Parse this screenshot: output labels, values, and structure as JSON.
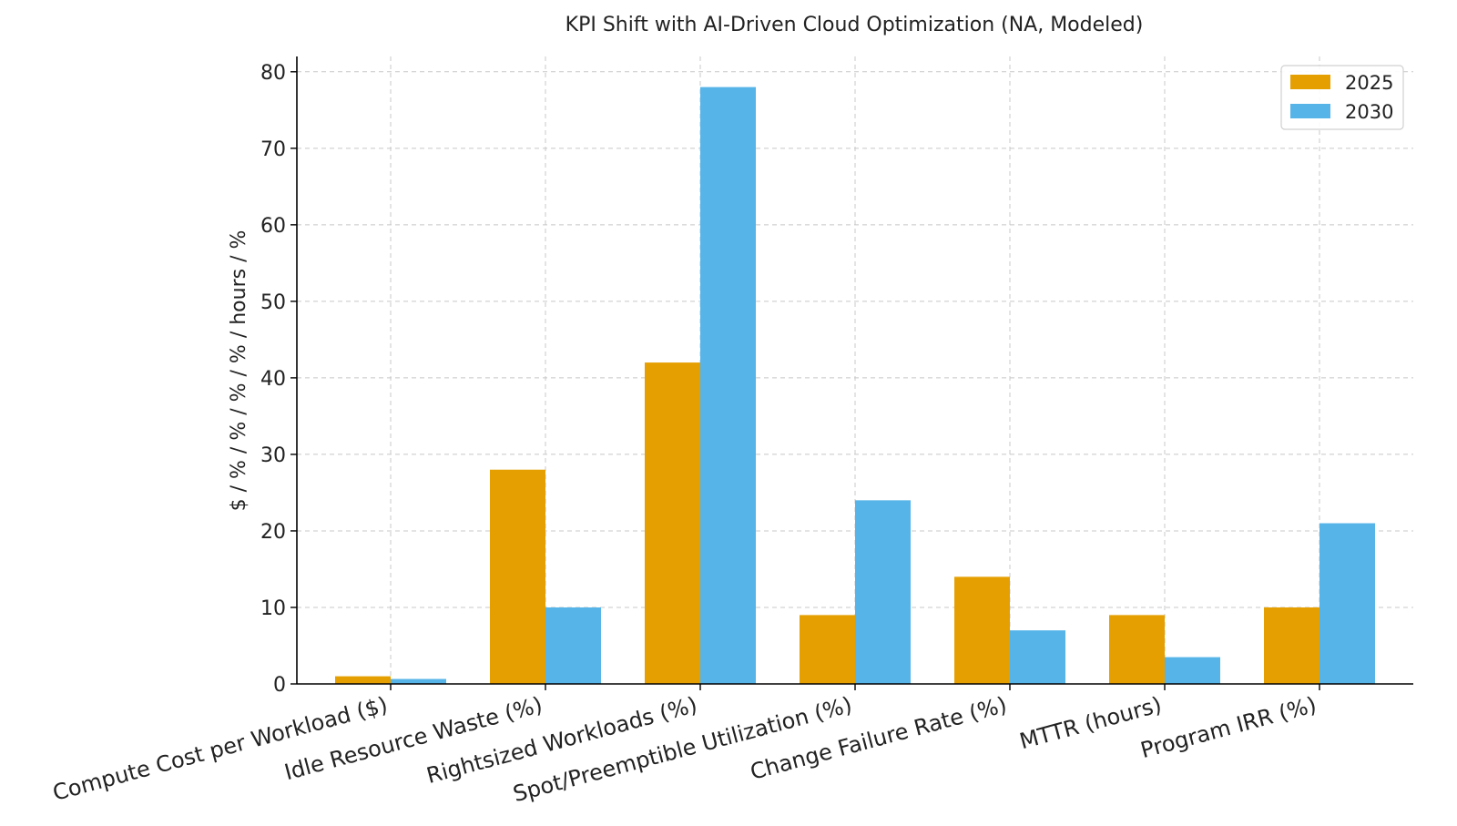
{
  "chart_data": {
    "type": "bar",
    "title": "KPI Shift with AI-Driven Cloud Optimization (NA, Modeled)",
    "xlabel": "",
    "ylabel": "$ / % / % / % / % / hours / %",
    "ylim": [
      0,
      82
    ],
    "yticks": [
      0,
      10,
      20,
      30,
      40,
      50,
      60,
      70,
      80
    ],
    "grid": true,
    "legend_position": "top-right",
    "categories": [
      "Compute Cost per Workload ($)",
      "Idle Resource Waste (%)",
      "Rightsized Workloads (%)",
      "Spot/Preemptible Utilization (%)",
      "Change Failure Rate (%)",
      "MTTR (hours)",
      "Program IRR (%)"
    ],
    "series": [
      {
        "name": "2025",
        "color": "#E69F00",
        "values": [
          1.0,
          28,
          42,
          9,
          14,
          9,
          10
        ]
      },
      {
        "name": "2030",
        "color": "#56B4E9",
        "values": [
          0.65,
          10,
          78,
          24,
          7,
          3.5,
          21
        ]
      }
    ]
  }
}
